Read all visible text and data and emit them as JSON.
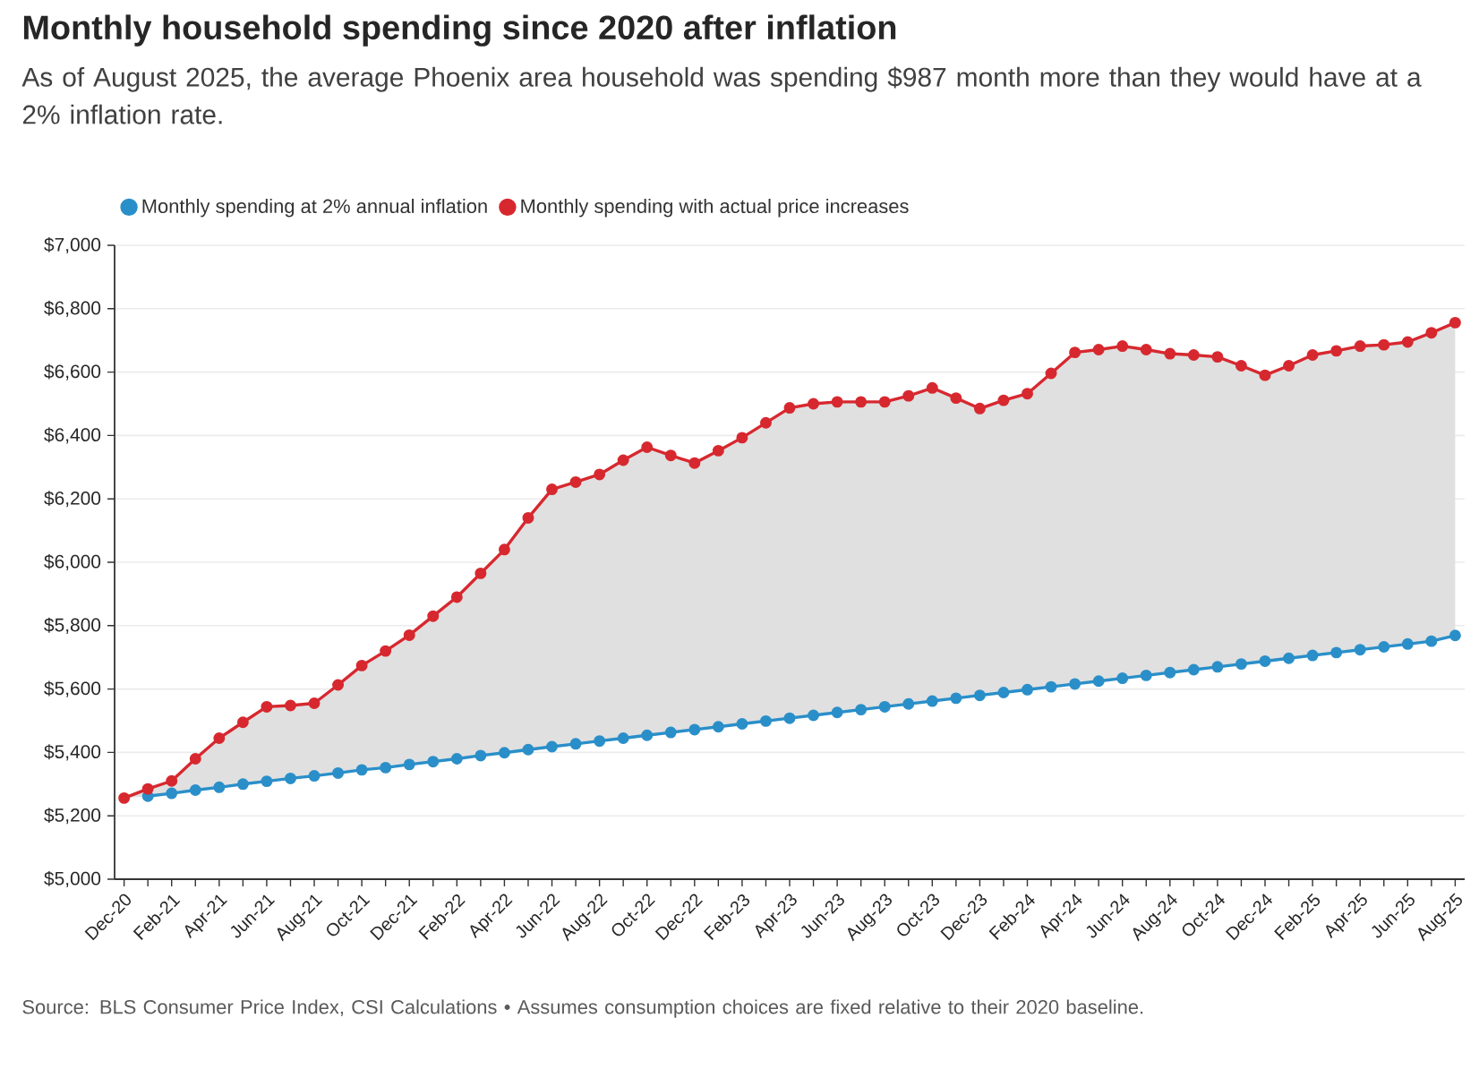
{
  "chart_data": {
    "type": "line",
    "title": "Monthly household spending since 2020 after inflation",
    "subtitle": "As of August 2025, the average Phoenix area household was spending $987 month more than they would have at a 2% inflation rate.",
    "annotations": [
      "Source: BLS Consumer Price Index, CSI Calculations • Assumes consumption choices are fixed relative to their 2020 baseline."
    ],
    "categories": [
      "Dec-20",
      null,
      "Feb-21",
      null,
      "Apr-21",
      null,
      "Jun-21",
      null,
      "Aug-21",
      null,
      "Oct-21",
      null,
      "Dec-21",
      null,
      "Feb-22",
      null,
      "Apr-22",
      null,
      "Jun-22",
      null,
      "Aug-22",
      null,
      "Oct-22",
      null,
      "Dec-22",
      null,
      "Feb-23",
      null,
      "Apr-23",
      null,
      "Jun-23",
      null,
      "Aug-23",
      null,
      "Oct-23",
      null,
      "Dec-23",
      null,
      "Feb-24",
      null,
      "Apr-24",
      null,
      "Jun-24",
      null,
      "Aug-24",
      null,
      "Oct-24",
      null,
      "Dec-24",
      null,
      "Feb-25",
      null,
      "Apr-25",
      null,
      "Jun-25",
      null,
      "Aug-25"
    ],
    "series": [
      {
        "name": "Monthly spending at 2% annual inflation",
        "color": "#2a8fc9",
        "values": [
          null,
          5262,
          5271,
          5281,
          5290,
          5300,
          5309,
          5318,
          5326,
          5335,
          5345,
          5352,
          5362,
          5371,
          5380,
          5390,
          5399,
          5409,
          5418,
          5427,
          5436,
          5445,
          5454,
          5463,
          5472,
          5481,
          5490,
          5499,
          5508,
          5517,
          5526,
          5535,
          5544,
          5553,
          5562,
          5571,
          5580,
          5589,
          5598,
          5607,
          5616,
          5625,
          5634,
          5643,
          5652,
          5661,
          5670,
          5679,
          5688,
          5697,
          5706,
          5715,
          5724,
          5733,
          5742,
          5751,
          5769
        ]
      },
      {
        "name": "Monthly spending with actual price increases",
        "color": "#d7282f",
        "values": [
          5256,
          5285,
          5310,
          5380,
          5445,
          5495,
          5544,
          5548,
          5555,
          5613,
          5674,
          5720,
          5770,
          5830,
          5890,
          5965,
          6040,
          6140,
          6230,
          6253,
          6277,
          6322,
          6363,
          6337,
          6313,
          6352,
          6393,
          6440,
          6487,
          6500,
          6506,
          6506,
          6506,
          6525,
          6550,
          6518,
          6485,
          6511,
          6532,
          6596,
          6662,
          6671,
          6682,
          6671,
          6658,
          6654,
          6648,
          6620,
          6590,
          6620,
          6654,
          6667,
          6682,
          6686,
          6695,
          6724,
          6756
        ]
      }
    ],
    "ylim": [
      5000,
      7000
    ],
    "yticks": [
      {
        "value": 5000,
        "label": "$5,000"
      },
      {
        "value": 5200,
        "label": "$5,200"
      },
      {
        "value": 5400,
        "label": "$5,400"
      },
      {
        "value": 5600,
        "label": "$5,600"
      },
      {
        "value": 5800,
        "label": "$5,800"
      },
      {
        "value": 6000,
        "label": "$6,000"
      },
      {
        "value": 6200,
        "label": "$6,200"
      },
      {
        "value": 6400,
        "label": "$6,400"
      },
      {
        "value": 6600,
        "label": "$6,600"
      },
      {
        "value": 6800,
        "label": "$6,800"
      },
      {
        "value": 7000,
        "label": "$7,000"
      }
    ],
    "grid": "y",
    "legend": "top left",
    "marker": "circle",
    "line_style": "solid"
  }
}
